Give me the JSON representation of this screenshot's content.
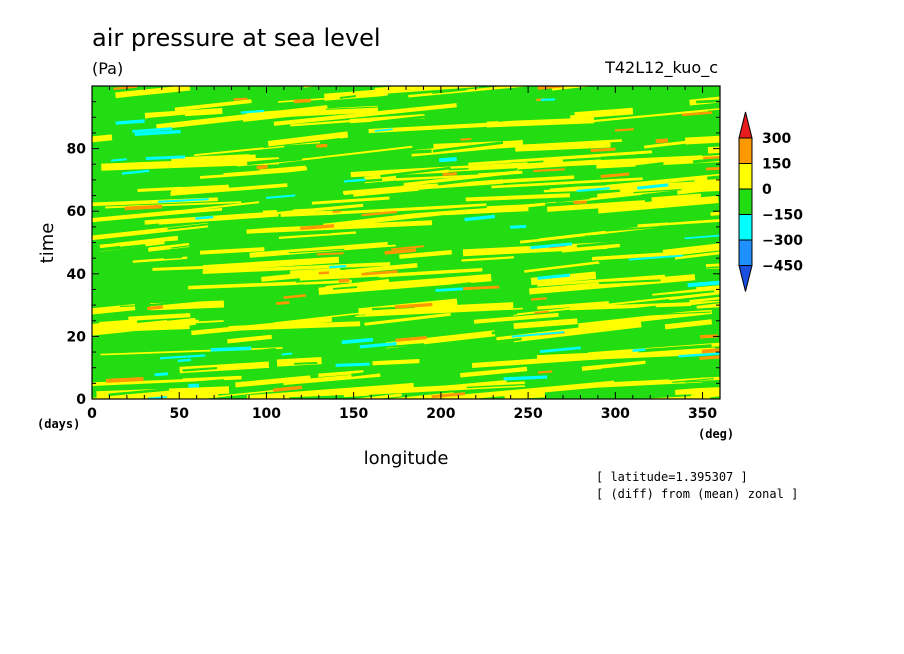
{
  "chart_data": {
    "type": "heatmap",
    "title": "air pressure at sea level",
    "units": "(Pa)",
    "experiment": "T42L12_kuo_c",
    "xlabel": "longitude",
    "ylabel": "time",
    "x_unit": "(deg)",
    "y_unit": "(days)",
    "xlim": [
      0,
      360
    ],
    "ylim": [
      0,
      100
    ],
    "x_ticks": [
      0,
      50,
      100,
      150,
      200,
      250,
      300,
      350
    ],
    "y_ticks": [
      0,
      20,
      40,
      60,
      80
    ],
    "colorbar": {
      "levels": [
        "300",
        "150",
        "0",
        "−150",
        "−300",
        "−450"
      ],
      "level_values": [
        300,
        150,
        0,
        -150,
        -300,
        -450
      ],
      "colors": [
        "#e81c1c",
        "#ff9900",
        "#ffff00",
        "#22dd11",
        "#00ffff",
        "#1e90ff",
        "#1a4fe0"
      ]
    },
    "notes": [
      "[ latitude=1.395307 ]",
      "[ (diff) from (mean) zonal ]"
    ]
  }
}
